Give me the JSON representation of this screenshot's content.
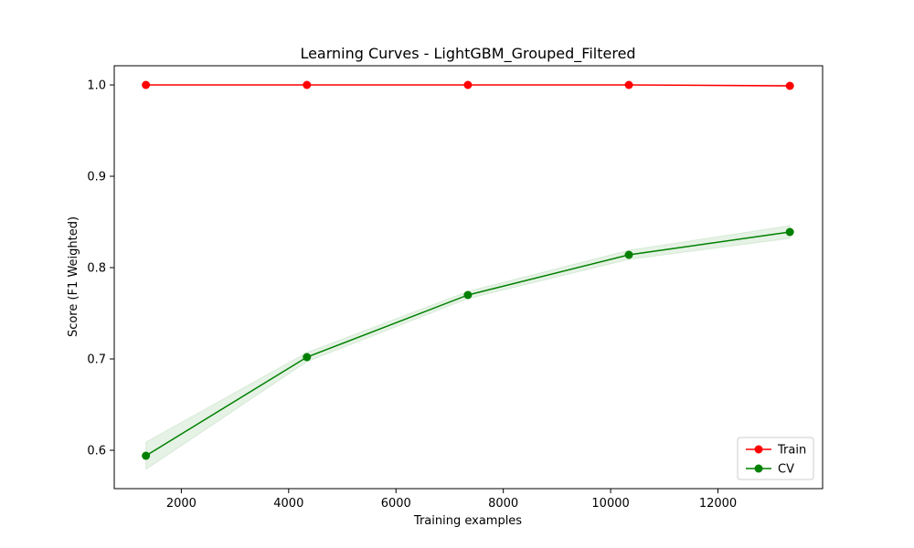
{
  "chart_data": {
    "type": "line",
    "title": "Learning Curves - LightGBM_Grouped_Filtered",
    "xlabel": "Training examples",
    "ylabel": "Score (F1 Weighted)",
    "xlim": [
      750,
      13950
    ],
    "ylim": [
      0.558,
      1.021
    ],
    "xticks": [
      2000,
      4000,
      6000,
      8000,
      10000,
      12000
    ],
    "xtick_labels": [
      "2000",
      "4000",
      "6000",
      "8000",
      "10000",
      "12000"
    ],
    "yticks": [
      0.6,
      0.7,
      0.8,
      0.9,
      1.0
    ],
    "ytick_labels": [
      "0.6",
      "0.7",
      "0.8",
      "0.9",
      "1.0"
    ],
    "x": [
      1340,
      4340,
      7340,
      10340,
      13340
    ],
    "grid": false,
    "legend_position": "bottom-right",
    "series": [
      {
        "name": "Train",
        "color": "#ff0000",
        "marker": "circle",
        "values": [
          1.0,
          1.0,
          1.0,
          1.0,
          0.999
        ],
        "band_lower": [
          1.0,
          1.0,
          1.0,
          1.0,
          0.998
        ],
        "band_upper": [
          1.0,
          1.0,
          1.0,
          1.0,
          1.0
        ]
      },
      {
        "name": "CV",
        "color": "#008000",
        "marker": "circle",
        "values": [
          0.594,
          0.702,
          0.77,
          0.814,
          0.839
        ],
        "band_lower": [
          0.579,
          0.697,
          0.766,
          0.809,
          0.832
        ],
        "band_upper": [
          0.609,
          0.707,
          0.774,
          0.819,
          0.846
        ]
      }
    ]
  }
}
